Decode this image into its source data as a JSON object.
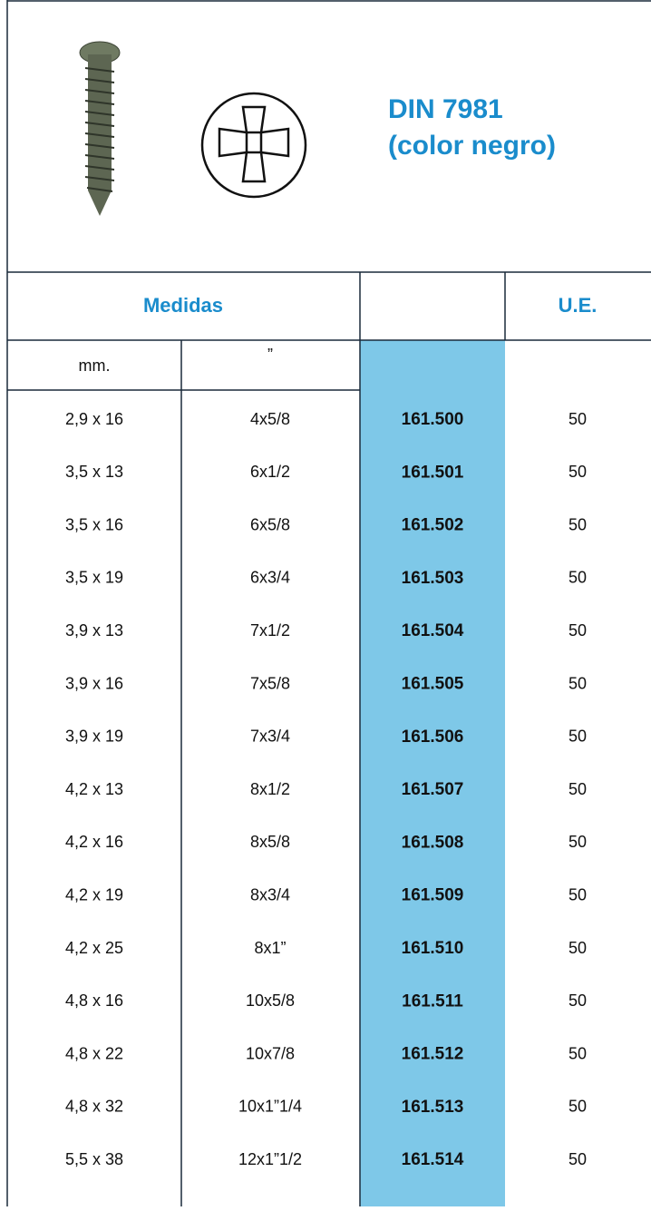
{
  "header": {
    "title": "DIN 7981",
    "subtitle": "(color negro)"
  },
  "table": {
    "header": {
      "medidas": "Medidas",
      "ue": "U.E."
    },
    "subheader": [
      "mm.",
      "”"
    ],
    "rows": [
      [
        "2,9 x 16",
        "4x5/8",
        "161.500",
        "50"
      ],
      [
        "3,5 x 13",
        "6x1/2",
        "161.501",
        "50"
      ],
      [
        "3,5 x 16",
        "6x5/8",
        "161.502",
        "50"
      ],
      [
        "3,5 x 19",
        "6x3/4",
        "161.503",
        "50"
      ],
      [
        "3,9 x 13",
        "7x1/2",
        "161.504",
        "50"
      ],
      [
        "3,9 x 16",
        "7x5/8",
        "161.505",
        "50"
      ],
      [
        "3,9 x 19",
        "7x3/4",
        "161.506",
        "50"
      ],
      [
        "4,2 x 13",
        "8x1/2",
        "161.507",
        "50"
      ],
      [
        "4,2 x 16",
        "8x5/8",
        "161.508",
        "50"
      ],
      [
        "4,2 x 19",
        "8x3/4",
        "161.509",
        "50"
      ],
      [
        "4,2 x 25",
        "8x1”",
        "161.510",
        "50"
      ],
      [
        "4,8 x 16",
        "10x5/8",
        "161.511",
        "50"
      ],
      [
        "4,8 x 22",
        "10x7/8",
        "161.512",
        "50"
      ],
      [
        "4,8 x 32",
        "10x1”1/4",
        "161.513",
        "50"
      ],
      [
        "5,5 x 38",
        "12x1”1/2",
        "161.514",
        "50"
      ]
    ]
  }
}
